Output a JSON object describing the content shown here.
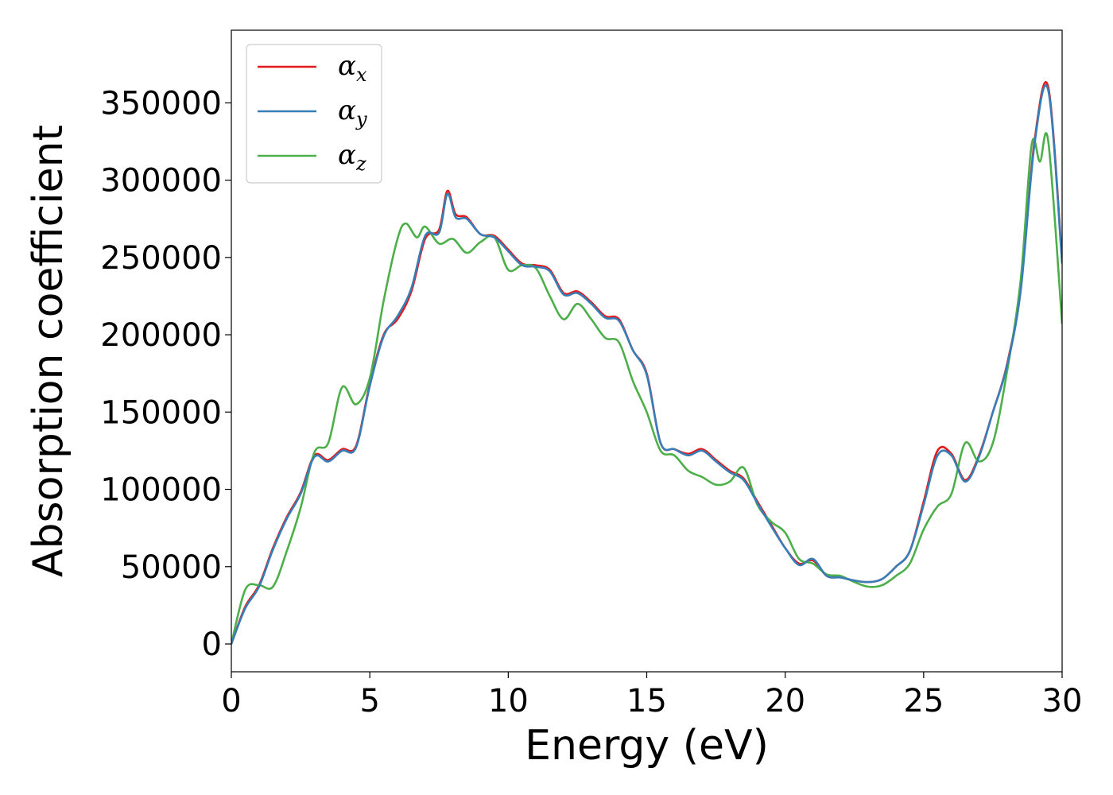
{
  "chart_data": {
    "type": "line",
    "xlabel": "Energy (eV)",
    "ylabel": "Absorption coefficient",
    "xlim": [
      0,
      30
    ],
    "ylim": [
      -18000,
      397000
    ],
    "xticks": [
      0,
      5,
      10,
      15,
      20,
      25,
      30
    ],
    "yticks": [
      0,
      50000,
      100000,
      150000,
      200000,
      250000,
      300000,
      350000
    ],
    "grid": false,
    "legend_position": "top-left",
    "series": [
      {
        "name": "α",
        "subscript": "x",
        "color": "#e41a1c",
        "x": [
          0,
          0.5,
          1,
          1.5,
          2,
          2.5,
          3,
          3.5,
          4,
          4.5,
          5,
          5.5,
          6,
          6.5,
          7,
          7.5,
          7.8,
          8.1,
          8.5,
          9,
          9.5,
          10,
          10.5,
          11,
          11.5,
          12,
          12.5,
          13,
          13.5,
          14,
          14.5,
          15,
          15.5,
          16,
          16.5,
          17,
          17.5,
          18,
          18.5,
          19,
          19.5,
          20,
          20.5,
          21,
          21.5,
          22,
          22.5,
          23,
          23.5,
          24,
          24.5,
          25,
          25.5,
          26,
          26.5,
          27,
          27.5,
          28,
          28.5,
          29,
          29.5,
          30
        ],
        "values": [
          0,
          24000,
          38000,
          62000,
          82000,
          98000,
          122000,
          119000,
          126000,
          128000,
          168000,
          200000,
          210000,
          228000,
          262000,
          268000,
          293000,
          278000,
          276000,
          265000,
          264000,
          255000,
          246000,
          245000,
          242000,
          227000,
          228000,
          221000,
          212000,
          210000,
          190000,
          175000,
          130000,
          126000,
          123000,
          126000,
          119000,
          112000,
          107000,
          92000,
          77000,
          62000,
          52000,
          54000,
          44000,
          43000,
          41000,
          40000,
          42000,
          50000,
          60000,
          92000,
          125000,
          123000,
          106000,
          122000,
          150000,
          180000,
          230000,
          325000,
          360000,
          248000
        ]
      },
      {
        "name": "α",
        "subscript": "y",
        "color": "#377eb8",
        "x": [
          0,
          0.5,
          1,
          1.5,
          2,
          2.5,
          3,
          3.5,
          4,
          4.5,
          5,
          5.5,
          6,
          6.5,
          7,
          7.5,
          7.8,
          8.1,
          8.5,
          9,
          9.5,
          10,
          10.5,
          11,
          11.5,
          12,
          12.5,
          13,
          13.5,
          14,
          14.5,
          15,
          15.5,
          16,
          16.5,
          17,
          17.5,
          18,
          18.5,
          19,
          19.5,
          20,
          20.5,
          21,
          21.5,
          22,
          22.5,
          23,
          23.5,
          24,
          24.5,
          25,
          25.5,
          26,
          26.5,
          27,
          27.5,
          28,
          28.5,
          29,
          29.5,
          30
        ],
        "values": [
          0,
          23000,
          37000,
          61000,
          81000,
          97000,
          121000,
          118000,
          125000,
          127000,
          167000,
          199000,
          212000,
          230000,
          264000,
          266000,
          291000,
          276000,
          275000,
          265000,
          263000,
          254000,
          245000,
          244000,
          241000,
          226000,
          227000,
          220000,
          211000,
          209000,
          190000,
          174000,
          130000,
          126000,
          122000,
          125000,
          118000,
          111000,
          106000,
          91000,
          76000,
          62000,
          51000,
          55000,
          44000,
          43000,
          41000,
          40000,
          42000,
          50000,
          60000,
          90000,
          122000,
          122000,
          105000,
          121000,
          150000,
          179000,
          228000,
          323000,
          358000,
          246000
        ]
      },
      {
        "name": "α",
        "subscript": "z",
        "color": "#4daf4a",
        "x": [
          0,
          0.5,
          1,
          1.5,
          2,
          2.5,
          3,
          3.5,
          4,
          4.5,
          5,
          5.5,
          6,
          6.3,
          6.7,
          7,
          7.5,
          8,
          8.5,
          9,
          9.5,
          10,
          10.5,
          11,
          11.5,
          12,
          12.5,
          13,
          13.5,
          14,
          14.5,
          15,
          15.5,
          16,
          16.5,
          17,
          17.5,
          18,
          18.5,
          19,
          19.5,
          20,
          20.5,
          21,
          21.5,
          22,
          22.5,
          23,
          23.5,
          24,
          24.5,
          25,
          25.5,
          26,
          26.5,
          27,
          27.5,
          28,
          28.5,
          28.9,
          29.2,
          29.5,
          30
        ],
        "values": [
          0,
          35000,
          38000,
          37000,
          60000,
          88000,
          124000,
          130000,
          166000,
          155000,
          172000,
          222000,
          262000,
          272000,
          263000,
          270000,
          259000,
          262000,
          253000,
          260000,
          263000,
          242000,
          245000,
          243000,
          225000,
          210000,
          220000,
          210000,
          198000,
          195000,
          170000,
          150000,
          125000,
          122000,
          112000,
          108000,
          103000,
          105000,
          114000,
          90000,
          79000,
          72000,
          55000,
          52000,
          45000,
          44000,
          40000,
          37000,
          38000,
          44000,
          52000,
          74000,
          89000,
          97000,
          130000,
          118000,
          130000,
          175000,
          235000,
          323000,
          312000,
          325000,
          207000
        ]
      }
    ]
  }
}
